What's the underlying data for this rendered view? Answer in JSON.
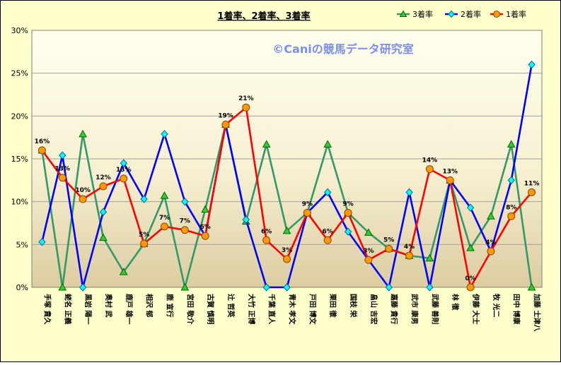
{
  "chart_data": {
    "type": "line",
    "title": "1着率、2着率、3着率",
    "watermark": "©Caniの競馬データ研究室",
    "xlabel": "",
    "ylabel": "",
    "ylim": [
      0,
      30
    ],
    "yticks": [
      "0%",
      "5%",
      "10%",
      "15%",
      "20%",
      "25%",
      "30%"
    ],
    "grid": true,
    "legend_position": "top-right",
    "categories": [
      "手塚 貴久",
      "蛯名 正義",
      "黒岩 陽一",
      "奥村 武",
      "鹿戸 雄一",
      "相沢 郁",
      "鹿 宣行",
      "宮田 敬介",
      "古賀 慎明",
      "辻 哲英",
      "大竹 正博",
      "千葉 直人",
      "青木 孝文",
      "戸田 博文",
      "栗田 徹",
      "国枝 栄",
      "畠山 吉宏",
      "嘉藤 貴行",
      "武市 康男",
      "武藤 善則",
      "林 徹",
      "伊藤 大士",
      "牧 光二",
      "田中 博康",
      "加藤 士津八"
    ],
    "series": [
      {
        "name": "3着率",
        "color": "#339966",
        "marker": "triangle",
        "marker_fill": "#33CC33",
        "values": [
          16,
          0,
          17.9,
          5.8,
          1.8,
          5.1,
          10.7,
          0,
          9.1,
          19,
          7.7,
          16.7,
          6.6,
          8.7,
          16.7,
          8.7,
          6.4,
          4.5,
          3.7,
          3.4,
          12.5,
          4.6,
          8.3,
          16.7,
          0
        ]
      },
      {
        "name": "2着率",
        "color": "#0000FF",
        "marker": "diamond",
        "marker_fill": "#00FFFF",
        "values": [
          5.3,
          15.4,
          0,
          8.8,
          14.5,
          10.3,
          17.9,
          10,
          6,
          19,
          7.9,
          0,
          0,
          8.7,
          11.1,
          6.5,
          3.2,
          0,
          11.1,
          0,
          12.5,
          9.3,
          4.2,
          12.5,
          26
        ]
      },
      {
        "name": "1着率",
        "color": "#FF0000",
        "marker": "circle",
        "marker_fill": "#FF9900",
        "values": [
          16,
          12.8,
          10.3,
          11.8,
          12.7,
          5.1,
          7.1,
          6.7,
          6,
          19,
          21,
          5.5,
          3.3,
          8.7,
          5.5,
          8.7,
          3.2,
          4.5,
          3.7,
          13.8,
          12.5,
          0,
          4.2,
          8.3,
          11.1
        ]
      }
    ],
    "data_labels": {
      "series": "1着率",
      "values": [
        "16%",
        "13%",
        "10%",
        "12%",
        "13%",
        "5%",
        "7%",
        "7%",
        "6%",
        "19%",
        "21%",
        "6%",
        "3%",
        "9%",
        "6%",
        "9%",
        "3%",
        "5%",
        "4%",
        "14%",
        "13%",
        "0%",
        "4%",
        "8%",
        "11%"
      ]
    }
  }
}
